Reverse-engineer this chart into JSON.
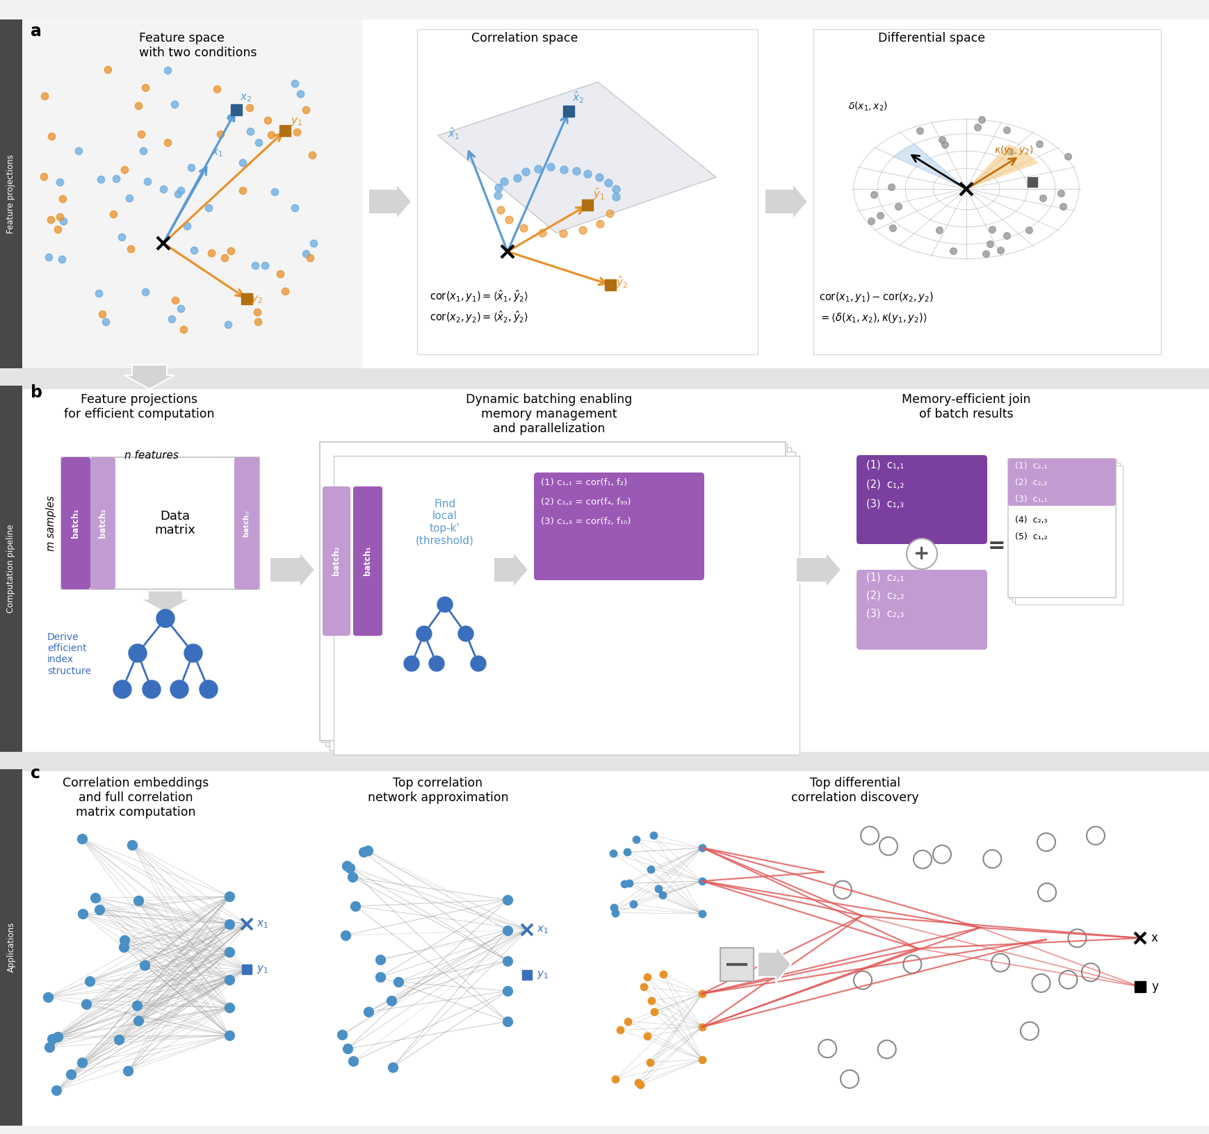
{
  "bg_color": "#f2f2f2",
  "white": "#ffffff",
  "blue_dot": "#4a90c4",
  "orange_dot": "#e8922a",
  "purple_dark": "#7b3fa0",
  "purple_mid": "#9b59b6",
  "purple_light": "#c39bd3",
  "blue_text": "#4a90c4",
  "orange_text": "#e8922a",
  "red_line": "#e05050",
  "section_bg": "#484848",
  "gray_arrow": "#cccccc",
  "panel_a_title1": "Feature space\nwith two conditions",
  "panel_a_title2": "Correlation space",
  "panel_a_title3": "Differential space",
  "panel_b_title1": "Feature projections\nfor efficient computation",
  "panel_b_title2": "Dynamic batching enabling\nmemory management\nand parallelization",
  "panel_b_title3": "Memory-efficient join\nof batch results",
  "panel_c_title1": "Correlation embeddings\nand full correlation\nmatrix computation",
  "panel_c_title2": "Top correlation\nnetwork approximation",
  "panel_c_title3": "Top differential\ncorrelation discovery",
  "sec_a_label": "Feature projections",
  "sec_b_label": "Computation pipeline",
  "sec_c_label": "Applications"
}
